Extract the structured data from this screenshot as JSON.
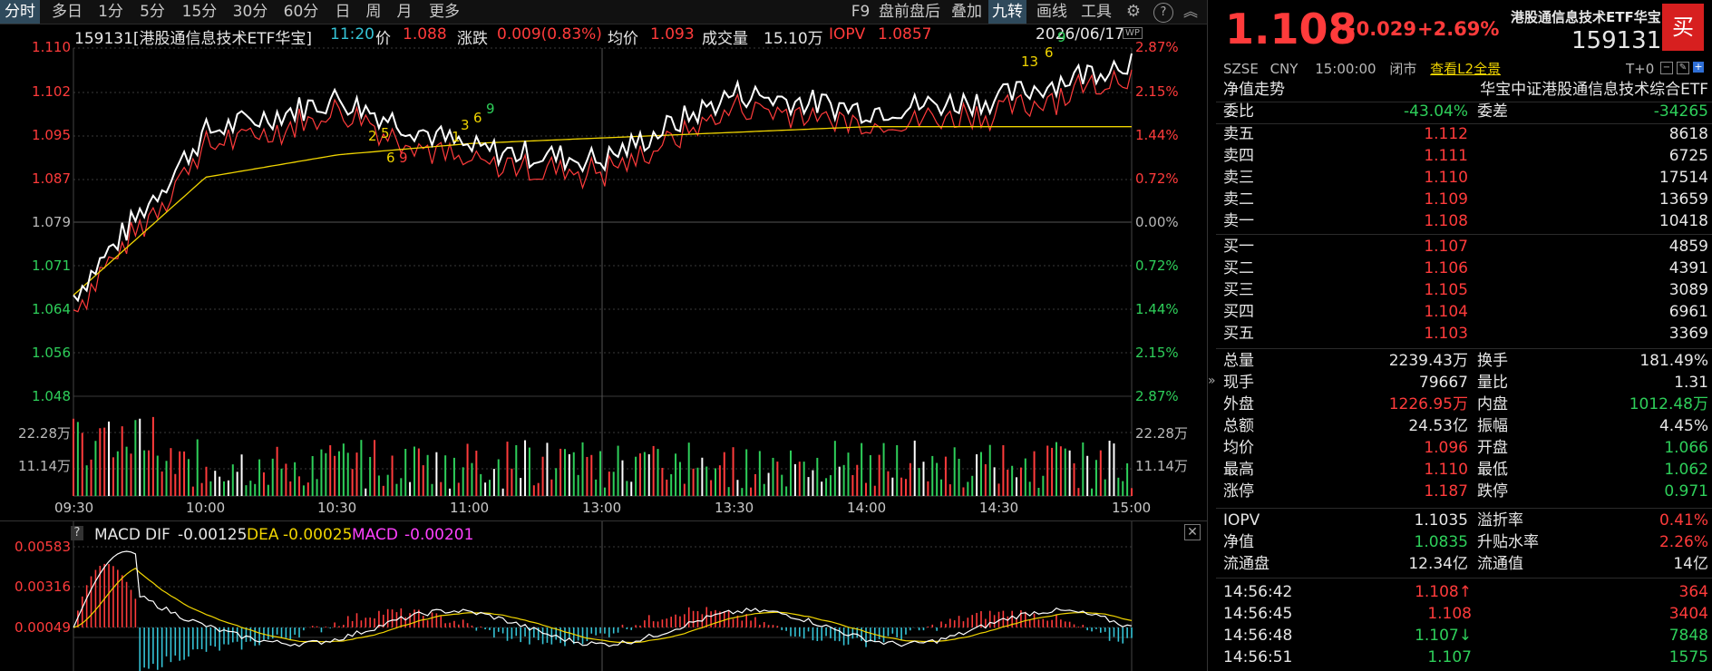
{
  "toolbar": {
    "left_tabs": [
      "分时",
      "多日",
      "1分",
      "5分",
      "15分",
      "30分",
      "60分",
      "日",
      "周",
      "月",
      "更多"
    ],
    "right_tabs": [
      "F9",
      "盘前盘后",
      "叠加",
      "九转",
      "画线",
      "工具"
    ],
    "active_left": "分时",
    "active_right": "九转"
  },
  "info_bar": {
    "code_name": "159131[港股通信息技术ETF华宝]",
    "time": "11:20",
    "price_label": "价",
    "price": "1.088",
    "change_label": "涨跌",
    "change": "0.009(0.83%)",
    "avg_label": "均价",
    "avg": "1.093",
    "volume_label": "成交量",
    "volume": "15.10万",
    "iopv_label": "IOPV",
    "iopv": "1.0857",
    "date": "2026/06/17",
    "wp_badge": "WP"
  },
  "price_axis": {
    "left": [
      "1.110",
      "1.102",
      "1.095",
      "1.087",
      "1.079",
      "1.071",
      "1.064",
      "1.056",
      "1.048"
    ],
    "right": [
      "2.87%",
      "2.15%",
      "1.44%",
      "0.72%",
      "0.00%",
      "0.72%",
      "1.44%",
      "2.15%",
      "2.87%"
    ]
  },
  "volume_axis": {
    "left": [
      "22.28万",
      "11.14万"
    ],
    "right": [
      "22.28万",
      "11.14万"
    ]
  },
  "time_axis": [
    "09:30",
    "10:00",
    "10:30",
    "11:00",
    "13:00",
    "13:30",
    "14:00",
    "14:30",
    "15:00"
  ],
  "nine_turn_labels": [
    {
      "text": "2",
      "color": "yellow"
    },
    {
      "text": "5",
      "color": "yellow"
    },
    {
      "text": "6",
      "color": "yellow"
    },
    {
      "text": "9",
      "color": "red"
    },
    {
      "text": "1",
      "color": "yellow"
    },
    {
      "text": "3",
      "color": "yellow"
    },
    {
      "text": "6",
      "color": "yellow"
    },
    {
      "text": "9",
      "color": "green"
    },
    {
      "text": "13",
      "color": "yellow"
    },
    {
      "text": "6",
      "color": "yellow"
    },
    {
      "text": "9",
      "color": "green"
    }
  ],
  "macd": {
    "help": "?",
    "title": "MACD",
    "dif_label": "DIF",
    "dif": "-0.00125",
    "dea_label": "DEA",
    "dea": "-0.00025",
    "macd_label": "MACD",
    "macd": "-0.00201",
    "axis": [
      "0.00583",
      "0.00316",
      "0.00049"
    ],
    "close": "✕"
  },
  "colors": {
    "up": "#ff3b3b",
    "down": "#2ecf5a",
    "price_line": "#ffffff",
    "iopv_line": "#ff3b3b",
    "avg_line": "#f0d400",
    "macd_pos": "#ff3b3b",
    "macd_neg": "#35c3d6"
  },
  "chart_data": {
    "type": "line",
    "title": "",
    "x": [
      "09:30",
      "10:00",
      "10:30",
      "11:00",
      "13:00",
      "13:30",
      "14:00",
      "14:30",
      "15:00"
    ],
    "series": [
      {
        "name": "价",
        "values": [
          1.066,
          1.095,
          1.101,
          1.092,
          1.09,
          1.102,
          1.099,
          1.101,
          1.108
        ]
      },
      {
        "name": "均价",
        "values": [
          1.066,
          1.087,
          1.091,
          1.093,
          1.094,
          1.095,
          1.096,
          1.096,
          1.096
        ]
      }
    ],
    "ylim": [
      1.048,
      1.11
    ]
  },
  "right_panel": {
    "price": "1.108",
    "change": "+0.029",
    "change_pct": "+2.69%",
    "name": "港股通信息技术ETF华宝",
    "code": "159131",
    "buy_btn": "买",
    "status_line": {
      "exchange": "SZSE",
      "currency": "CNY",
      "time": "15:00:00",
      "state": "闭市",
      "l2": "查看L2全景",
      "t0": "T+0"
    },
    "nav_trend": "净值走势",
    "index_name": "华宝中证港股通信息技术综合ETF",
    "weibi_label": "委比",
    "weibi": "-43.04%",
    "weicha_label": "委差",
    "weicha": "-34265",
    "asks": [
      {
        "label": "卖五",
        "price": "1.112",
        "vol": "8618"
      },
      {
        "label": "卖四",
        "price": "1.111",
        "vol": "6725"
      },
      {
        "label": "卖三",
        "price": "1.110",
        "vol": "17514"
      },
      {
        "label": "卖二",
        "price": "1.109",
        "vol": "13659"
      },
      {
        "label": "卖一",
        "price": "1.108",
        "vol": "10418"
      }
    ],
    "bids": [
      {
        "label": "买一",
        "price": "1.107",
        "vol": "4859"
      },
      {
        "label": "买二",
        "price": "1.106",
        "vol": "4391"
      },
      {
        "label": "买三",
        "price": "1.105",
        "vol": "3089"
      },
      {
        "label": "买四",
        "price": "1.104",
        "vol": "6961"
      },
      {
        "label": "买五",
        "price": "1.103",
        "vol": "3369"
      }
    ],
    "stats": [
      {
        "l": "总量",
        "lv": "2239.43万",
        "lc": "white",
        "r": "换手",
        "rv": "181.49%",
        "rc": "white"
      },
      {
        "l": "现手",
        "lv": "79667",
        "lc": "white",
        "r": "量比",
        "rv": "1.31",
        "rc": "white"
      },
      {
        "l": "外盘",
        "lv": "1226.95万",
        "lc": "red",
        "r": "内盘",
        "rv": "1012.48万",
        "rc": "green"
      },
      {
        "l": "总额",
        "lv": "24.53亿",
        "lc": "white",
        "r": "振幅",
        "rv": "4.45%",
        "rc": "white"
      },
      {
        "l": "均价",
        "lv": "1.096",
        "lc": "red",
        "r": "开盘",
        "rv": "1.066",
        "rc": "green"
      },
      {
        "l": "最高",
        "lv": "1.110",
        "lc": "red",
        "r": "最低",
        "rv": "1.062",
        "rc": "green"
      },
      {
        "l": "涨停",
        "lv": "1.187",
        "lc": "red",
        "r": "跌停",
        "rv": "0.971",
        "rc": "green"
      }
    ],
    "etf_stats": [
      {
        "l": "IOPV",
        "lv": "1.1035",
        "lc": "white",
        "r": "溢折率",
        "rv": "0.41%",
        "rc": "red"
      },
      {
        "l": "净值",
        "lv": "1.0835",
        "lc": "green",
        "r": "升贴水率",
        "rv": "2.26%",
        "rc": "red"
      },
      {
        "l": "流通盘",
        "lv": "12.34亿",
        "lc": "white",
        "r": "流通值",
        "rv": "14亿",
        "rc": "white"
      }
    ],
    "ticks": [
      {
        "time": "14:56:42",
        "price": "1.108",
        "arrow": "↑",
        "vol": "364",
        "color": "red"
      },
      {
        "time": "14:56:45",
        "price": "1.108",
        "arrow": "",
        "vol": "3404",
        "color": "red"
      },
      {
        "time": "14:56:48",
        "price": "1.107",
        "arrow": "↓",
        "vol": "7848",
        "color": "green"
      },
      {
        "time": "14:56:51",
        "price": "1.107",
        "arrow": "",
        "vol": "1575",
        "color": "green"
      }
    ]
  }
}
